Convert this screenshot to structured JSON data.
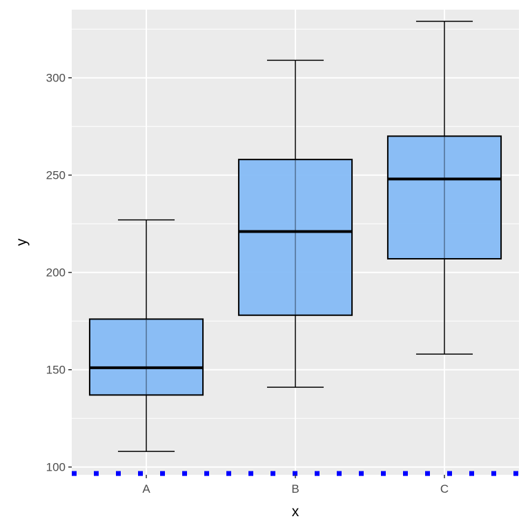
{
  "chart_data": {
    "type": "boxplot",
    "xlabel": "x",
    "ylabel": "y",
    "categories": [
      "A",
      "B",
      "C"
    ],
    "ylim": [
      96,
      335
    ],
    "y_ticks": [
      100,
      150,
      200,
      250,
      300
    ],
    "y_tick_labels": [
      "100",
      "150",
      "200",
      "250",
      "300"
    ],
    "grid": true,
    "boxes": [
      {
        "category": "A",
        "whisker_low": 108,
        "q1": 137,
        "median": 151,
        "q3": 176,
        "whisker_high": 227
      },
      {
        "category": "B",
        "whisker_low": 141,
        "q1": 178,
        "median": 221,
        "q3": 258,
        "whisker_high": 309
      },
      {
        "category": "C",
        "whisker_low": 158,
        "q1": 207,
        "median": 248,
        "q3": 270,
        "whisker_high": 329
      }
    ],
    "reference_line": {
      "y": 97,
      "style": "dotted",
      "color": "#0000ff"
    },
    "colors": {
      "panel_background": "#ebebeb",
      "grid": "#ffffff",
      "box_fill": "#85bbf5",
      "box_stroke": "#000000"
    }
  }
}
